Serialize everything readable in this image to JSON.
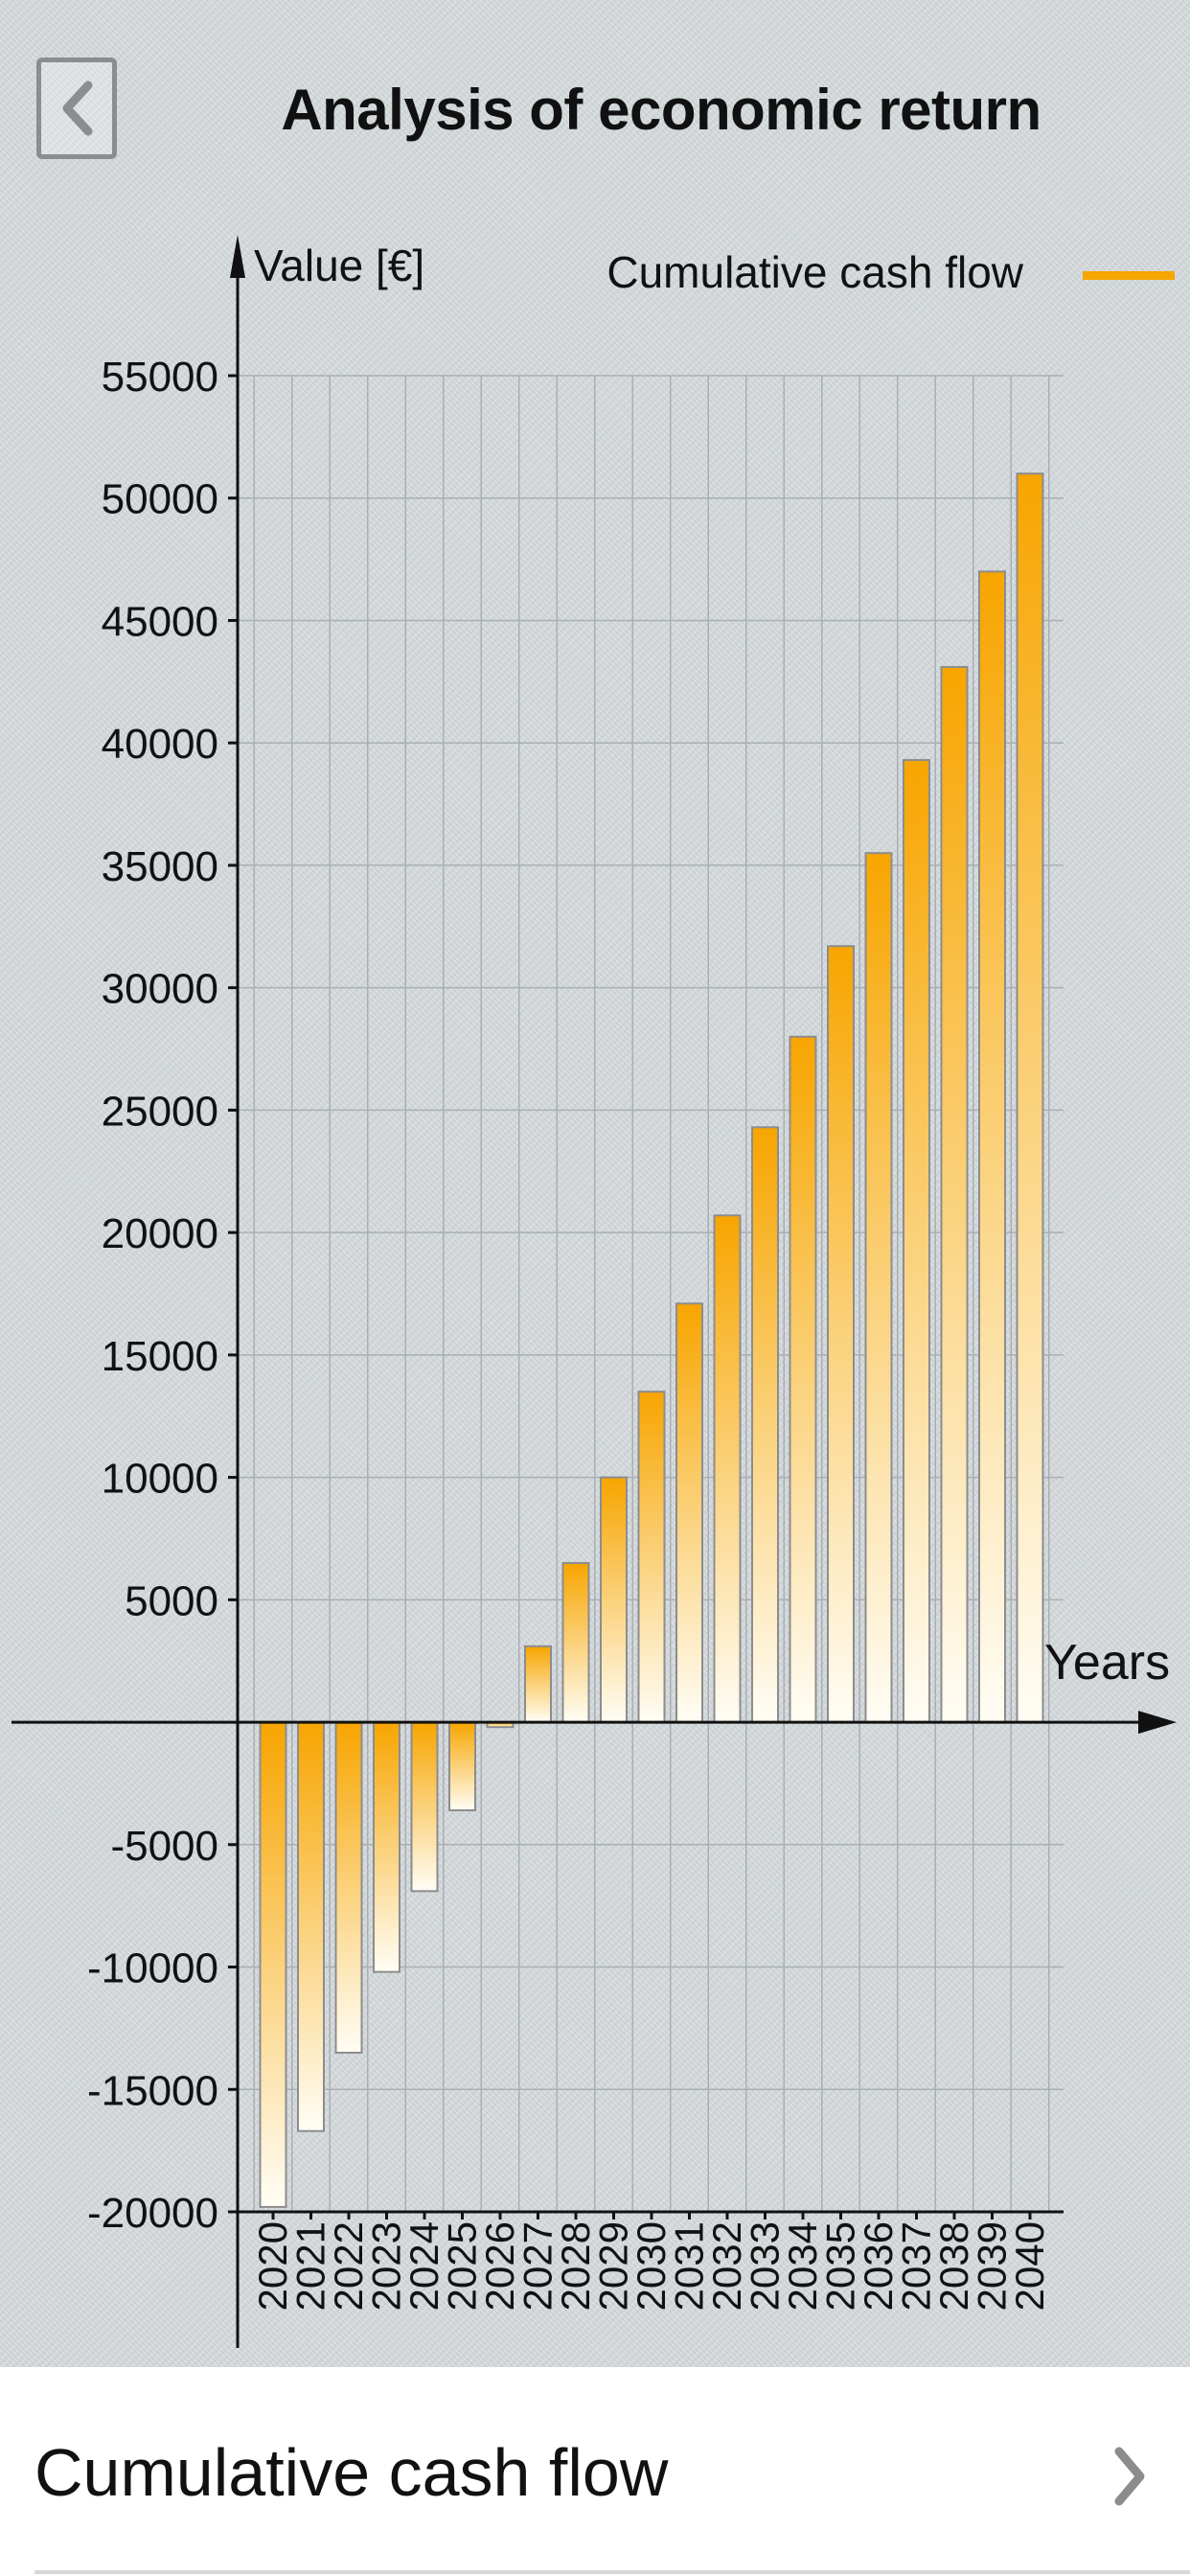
{
  "header": {
    "title": "Analysis of economic return",
    "back_icon": "chevron-left-icon"
  },
  "footer": {
    "item_label": "Cumulative cash flow",
    "item_icon": "chevron-right-icon"
  },
  "colors": {
    "bar_top": "#f7a500",
    "bar_bottom": "#fffdf5",
    "legend": "#f7a500"
  },
  "chart_data": {
    "type": "bar",
    "title": "",
    "ylabel": "Value [€]",
    "xlabel": "Years",
    "legend": {
      "entries": [
        "Cumulative cash flow"
      ],
      "placement": "top-right"
    },
    "ylim": [
      -20000,
      55000
    ],
    "yticks": [
      55000,
      50000,
      45000,
      40000,
      35000,
      30000,
      25000,
      20000,
      15000,
      10000,
      5000,
      -5000,
      -10000,
      -15000,
      -20000
    ],
    "grid": true,
    "categories": [
      "2020",
      "2021",
      "2022",
      "2023",
      "2024",
      "2025",
      "2026",
      "2027",
      "2028",
      "2029",
      "2030",
      "2031",
      "2032",
      "2033",
      "2034",
      "2035",
      "2036",
      "2037",
      "2038",
      "2039",
      "2040"
    ],
    "series": [
      {
        "name": "Cumulative cash flow",
        "values": [
          -19800,
          -16700,
          -13500,
          -10200,
          -6900,
          -3600,
          -200,
          3100,
          6500,
          10000,
          13500,
          17100,
          20700,
          24300,
          28000,
          31700,
          35500,
          39300,
          43100,
          47000,
          51000
        ]
      }
    ]
  }
}
